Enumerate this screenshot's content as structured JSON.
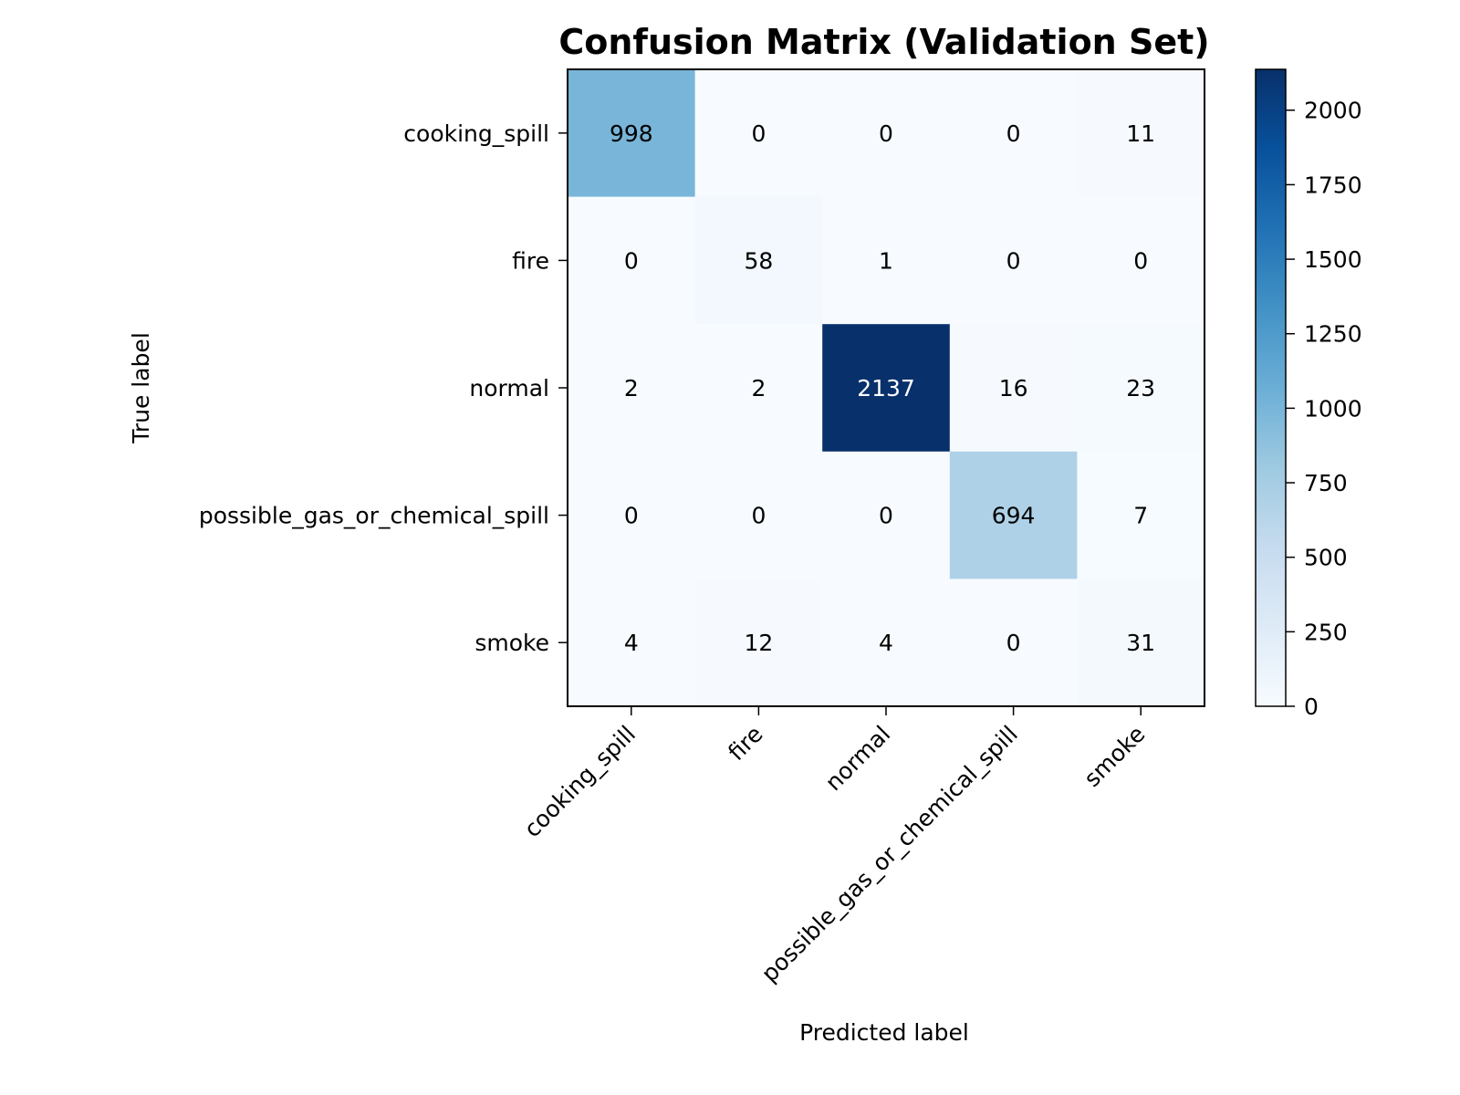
{
  "chart_data": {
    "type": "heatmap",
    "title": "Confusion Matrix (Validation Set)",
    "xlabel": "Predicted label",
    "ylabel": "True label",
    "x_categories": [
      "cooking_spill",
      "fire",
      "normal",
      "possible_gas_or_chemical_spill",
      "smoke"
    ],
    "y_categories": [
      "cooking_spill",
      "fire",
      "normal",
      "possible_gas_or_chemical_spill",
      "smoke"
    ],
    "values": [
      [
        998,
        0,
        0,
        0,
        11
      ],
      [
        0,
        58,
        1,
        0,
        0
      ],
      [
        2,
        2,
        2137,
        16,
        23
      ],
      [
        0,
        0,
        0,
        694,
        7
      ],
      [
        4,
        12,
        4,
        0,
        31
      ]
    ],
    "colorbar": {
      "range": [
        0,
        2137
      ],
      "ticks": [
        0,
        250,
        500,
        750,
        1000,
        1250,
        1500,
        1750,
        2000
      ],
      "colormap": "Blues",
      "colors": [
        "#f7fbff",
        "#deebf7",
        "#c6dbef",
        "#9ecae1",
        "#6baed6",
        "#4292c6",
        "#2171b5",
        "#08519c",
        "#08306b"
      ]
    },
    "grid": false
  }
}
